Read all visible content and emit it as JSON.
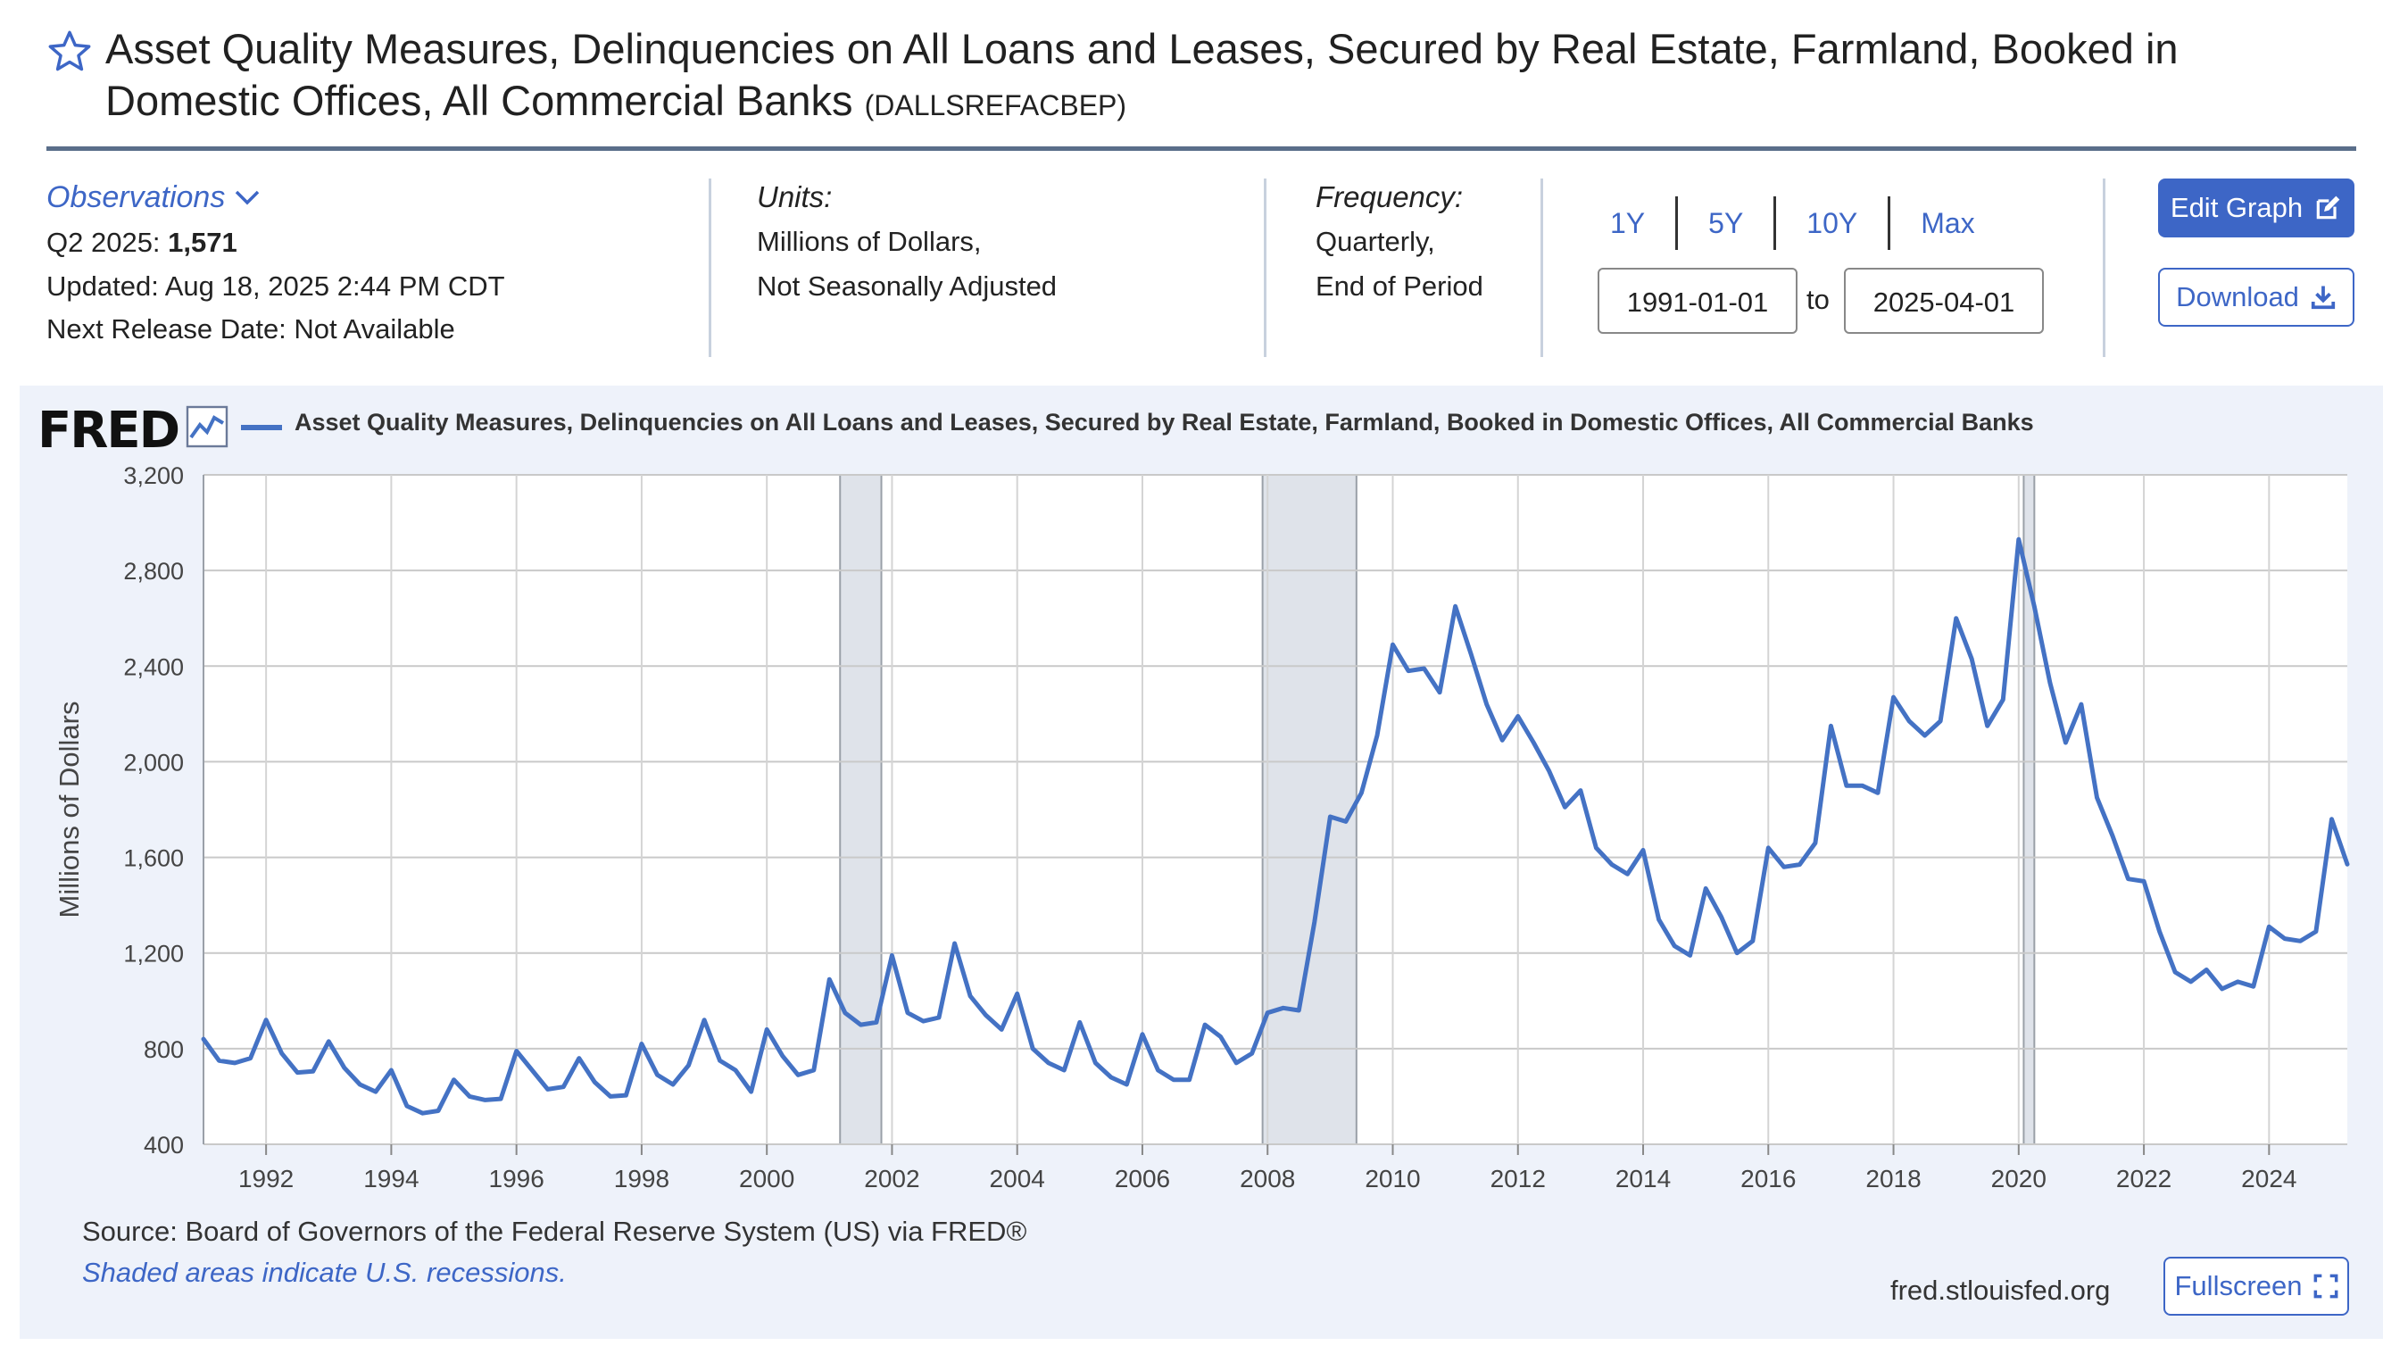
{
  "header": {
    "title": "Asset Quality Measures, Delinquencies on All Loans and Leases, Secured by Real Estate, Farmland, Booked in Domestic Offices, All Commercial Banks",
    "series_id": "(DALLSREFACBEP)",
    "star_icon": "star-outline-icon"
  },
  "observations": {
    "label": "Observations",
    "latest_period": "Q2 2025:",
    "latest_value": "1,571",
    "updated": "Updated: Aug 18, 2025 2:44 PM CDT",
    "next_release": "Next Release Date: Not Available"
  },
  "units": {
    "label": "Units:",
    "line1": "Millions of Dollars,",
    "line2": "Not Seasonally Adjusted"
  },
  "frequency": {
    "label": "Frequency:",
    "line1": "Quarterly,",
    "line2": "End of Period"
  },
  "range": {
    "buttons": [
      "1Y",
      "5Y",
      "10Y",
      "Max"
    ],
    "start": "1991-01-01",
    "to_label": "to",
    "end": "2025-04-01"
  },
  "actions": {
    "edit_label": "Edit Graph",
    "download_label": "Download",
    "fullscreen_label": "Fullscreen"
  },
  "footer": {
    "source": "Source: Board of Governors of the Federal Reserve System (US) via FRED®",
    "shaded_note": "Shaded areas indicate U.S. recessions.",
    "site": "fred.stlouisfed.org"
  },
  "logo": {
    "text": "FRED"
  },
  "colors": {
    "accent": "#3d66c6",
    "series": "#4472c4",
    "recession": "#dfe3ea",
    "panel": "#eef2fa"
  },
  "chart_data": {
    "type": "line",
    "title": "",
    "xlabel": "",
    "ylabel": "Millions of Dollars",
    "legend": "top-left",
    "grid": true,
    "ylim": [
      400,
      3200
    ],
    "xlim": [
      1991.0,
      2025.25
    ],
    "yticks": [
      400,
      800,
      1200,
      1600,
      2000,
      2400,
      2800,
      3200
    ],
    "ytick_labels": [
      "400",
      "800",
      "1,200",
      "1,600",
      "2,000",
      "2,400",
      "2,800",
      "3,200"
    ],
    "xticks": [
      1992,
      1994,
      1996,
      1998,
      2000,
      2002,
      2004,
      2006,
      2008,
      2010,
      2012,
      2014,
      2016,
      2018,
      2020,
      2022,
      2024
    ],
    "recessions": [
      [
        2001.17,
        2001.83
      ],
      [
        2007.92,
        2009.42
      ],
      [
        2020.08,
        2020.25
      ]
    ],
    "series": [
      {
        "name": "Asset Quality Measures, Delinquencies on All Loans and Leases, Secured by Real Estate, Farmland, Booked in Domestic Offices, All Commercial Banks",
        "start": "1991-01-01",
        "frequency": "quarterly",
        "values": [
          840,
          750,
          740,
          760,
          920,
          780,
          700,
          705,
          830,
          720,
          650,
          620,
          710,
          560,
          530,
          540,
          670,
          600,
          585,
          590,
          790,
          710,
          630,
          640,
          760,
          660,
          600,
          605,
          820,
          690,
          650,
          730,
          920,
          750,
          710,
          620,
          880,
          770,
          690,
          710,
          1090,
          950,
          900,
          910,
          1190,
          950,
          915,
          930,
          1240,
          1020,
          940,
          880,
          1030,
          800,
          740,
          710,
          910,
          740,
          680,
          650,
          860,
          710,
          670,
          670,
          900,
          850,
          740,
          780,
          950,
          970,
          960,
          1330,
          1770,
          1750,
          1870,
          2110,
          2490,
          2380,
          2390,
          2290,
          2650,
          2450,
          2240,
          2090,
          2190,
          2080,
          1960,
          1810,
          1880,
          1640,
          1570,
          1530,
          1630,
          1340,
          1230,
          1190,
          1470,
          1350,
          1200,
          1250,
          1640,
          1560,
          1570,
          1660,
          2150,
          1900,
          1900,
          1870,
          2270,
          2170,
          2110,
          2170,
          2600,
          2430,
          2150,
          2260,
          2930,
          2650,
          2330,
          2080,
          2240,
          1850,
          1690,
          1510,
          1500,
          1290,
          1120,
          1080,
          1130,
          1050,
          1080,
          1060,
          1310,
          1260,
          1250,
          1290,
          1760,
          1571
        ]
      }
    ]
  }
}
